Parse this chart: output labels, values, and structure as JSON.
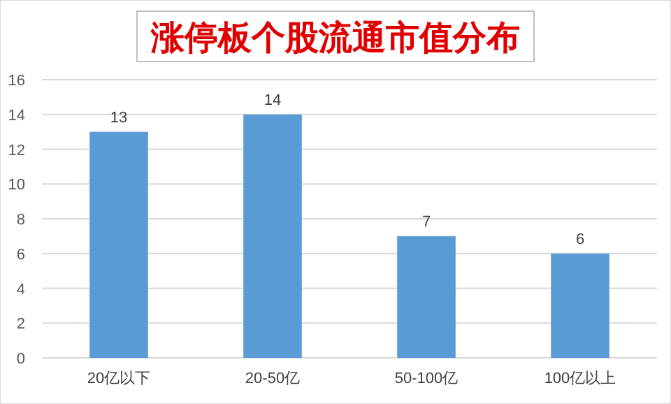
{
  "chart_data": {
    "type": "bar",
    "title": "涨停板个股流通市值分布",
    "categories": [
      "20亿以下",
      "20-50亿",
      "50-100亿",
      "100亿以上"
    ],
    "values": [
      13,
      14,
      7,
      6
    ],
    "color": "#5b9bd5",
    "ylim": [
      0,
      16
    ],
    "yticks": [
      0,
      2,
      4,
      6,
      8,
      10,
      12,
      14,
      16
    ],
    "grid": "y",
    "data_labels": true
  }
}
